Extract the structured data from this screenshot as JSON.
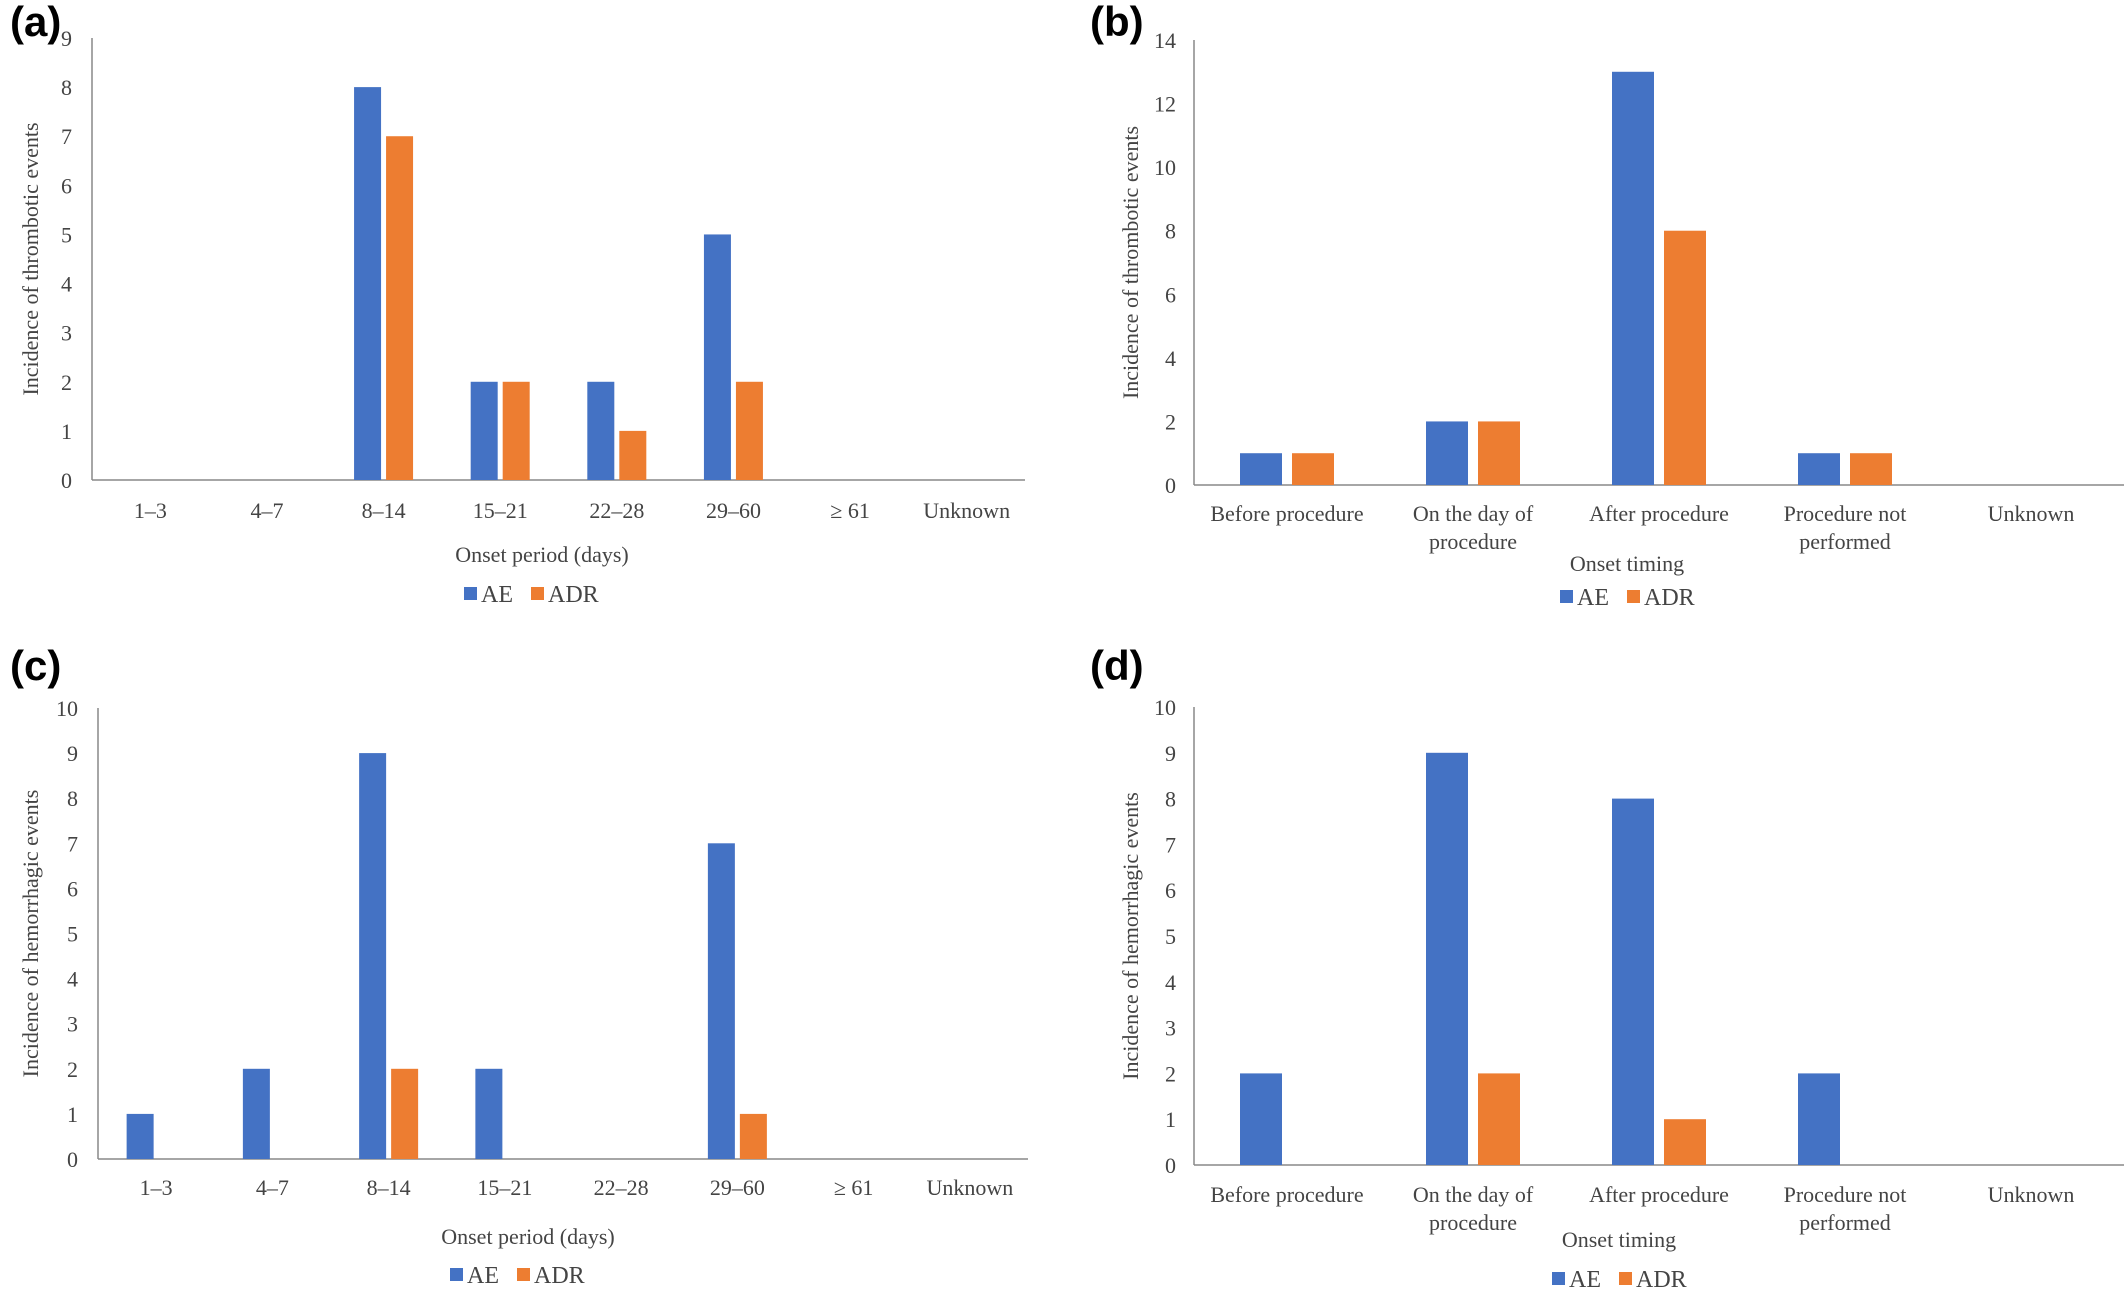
{
  "colors": {
    "AE": "#4472C4",
    "ADR": "#ED7D31",
    "axis": "#000000"
  },
  "chart_data": [
    {
      "panel": "(a)",
      "type": "bar",
      "categories": [
        "1–3",
        "4–7",
        "8–14",
        "15–21",
        "22–28",
        "29–60",
        "≥ 61",
        "Unknown"
      ],
      "series": [
        {
          "name": "AE",
          "values": [
            0,
            0,
            8,
            2,
            2,
            5,
            0,
            0
          ]
        },
        {
          "name": "ADR",
          "values": [
            0,
            0,
            7,
            2,
            1,
            2,
            0,
            0
          ]
        }
      ],
      "xlabel": "Onset period (days)",
      "ylabel": "Incidence of thrombotic events",
      "ylim": [
        0,
        9
      ],
      "yticks": [
        "0",
        "1",
        "2",
        "3",
        "4",
        "5",
        "6",
        "7",
        "8",
        "9"
      ],
      "grid": false,
      "legend": "bottom"
    },
    {
      "panel": "(b)",
      "type": "bar",
      "categories": [
        [
          "Before procedure"
        ],
        [
          "On the day of",
          "procedure"
        ],
        [
          "After procedure"
        ],
        [
          "Procedure not",
          "performed"
        ],
        [
          "Unknown"
        ]
      ],
      "series": [
        {
          "name": "AE",
          "values": [
            1,
            2,
            13,
            1,
            0
          ]
        },
        {
          "name": "ADR",
          "values": [
            1,
            2,
            8,
            1,
            0
          ]
        }
      ],
      "xlabel": "Onset timing",
      "ylabel": "Incidence of thrombotic events",
      "ylim": [
        0,
        14
      ],
      "yticks": [
        "0",
        "2",
        "4",
        "6",
        "8",
        "10",
        "12",
        "14"
      ],
      "grid": false,
      "legend": "bottom"
    },
    {
      "panel": "(c)",
      "type": "bar",
      "categories": [
        "1–3",
        "4–7",
        "8–14",
        "15–21",
        "22–28",
        "29–60",
        "≥ 61",
        "Unknown"
      ],
      "series": [
        {
          "name": "AE",
          "values": [
            1,
            2,
            9,
            2,
            0,
            7,
            0,
            0
          ]
        },
        {
          "name": "ADR",
          "values": [
            0,
            0,
            2,
            0,
            0,
            1,
            0,
            0
          ]
        }
      ],
      "xlabel": "Onset period (days)",
      "ylabel": "Incidence of hemorrhagic events",
      "ylim": [
        0,
        10
      ],
      "yticks": [
        "0",
        "1",
        "2",
        "3",
        "4",
        "5",
        "6",
        "7",
        "8",
        "9",
        "10"
      ],
      "grid": false,
      "legend": "bottom"
    },
    {
      "panel": "(d)",
      "type": "bar",
      "categories": [
        [
          "Before procedure"
        ],
        [
          "On the day of",
          "procedure"
        ],
        [
          "After procedure"
        ],
        [
          "Procedure not",
          "performed"
        ],
        [
          "Unknown"
        ]
      ],
      "series": [
        {
          "name": "AE",
          "values": [
            2,
            9,
            8,
            2,
            0
          ]
        },
        {
          "name": "ADR",
          "values": [
            0,
            2,
            1,
            0,
            0
          ]
        }
      ],
      "xlabel": "Onset timing",
      "ylabel": "Incidence of hemorrhagic events",
      "ylim": [
        0,
        10
      ],
      "yticks": [
        "0",
        "1",
        "2",
        "3",
        "4",
        "5",
        "6",
        "7",
        "8",
        "9",
        "10"
      ],
      "grid": false,
      "legend": "bottom"
    }
  ]
}
